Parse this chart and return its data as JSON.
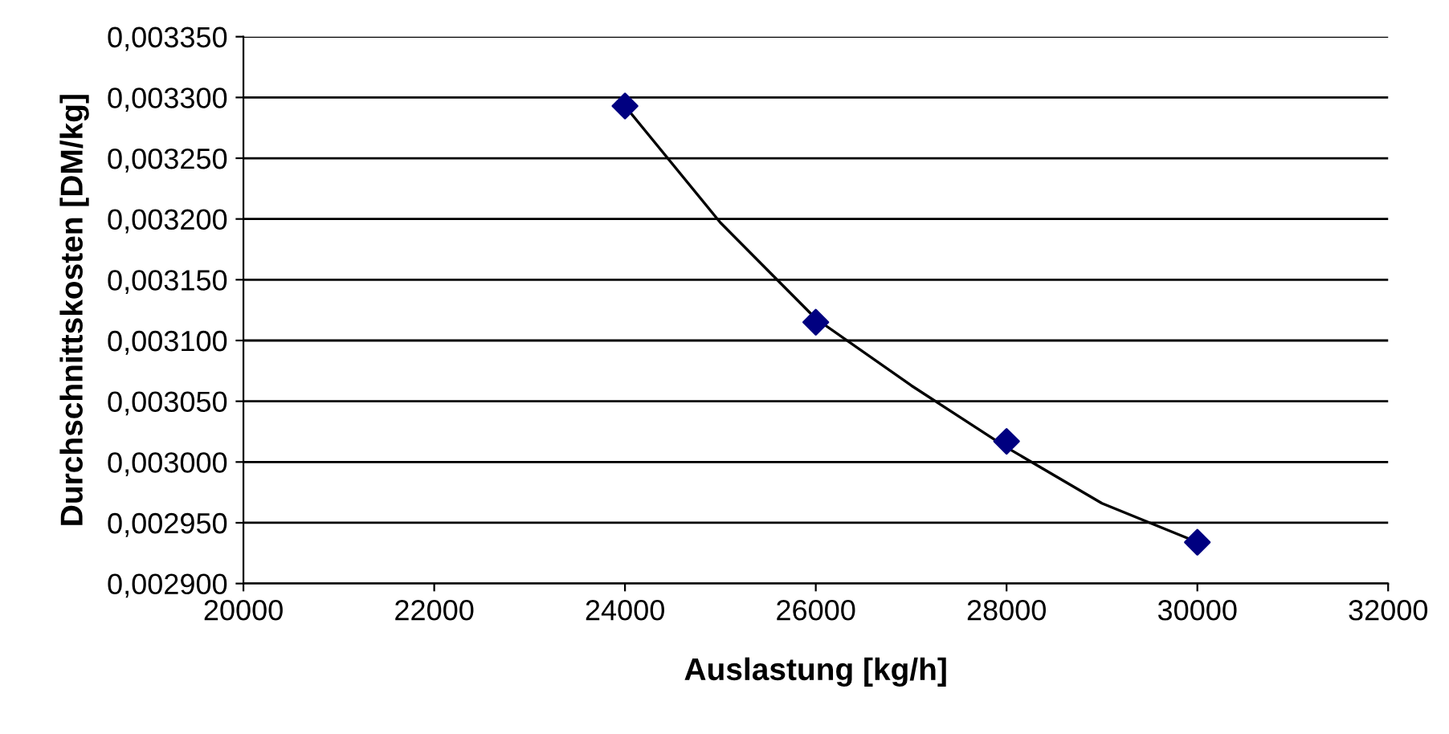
{
  "chart_data": {
    "type": "scatter",
    "xlabel": "Auslastung [kg/h]",
    "ylabel": "Durchschnittskosten [DM/kg]",
    "xlim": [
      20000,
      32000
    ],
    "xticks": [
      20000,
      22000,
      24000,
      26000,
      28000,
      30000,
      32000
    ],
    "ylim": [
      0.0029,
      0.00335
    ],
    "yticks": [
      {
        "value": 0.0029,
        "label": "0,002900"
      },
      {
        "value": 0.00295,
        "label": "0,002950"
      },
      {
        "value": 0.003,
        "label": "0,003000"
      },
      {
        "value": 0.00305,
        "label": "0,003050"
      },
      {
        "value": 0.0031,
        "label": "0,003100"
      },
      {
        "value": 0.00315,
        "label": "0,003150"
      },
      {
        "value": 0.0032,
        "label": "0,003200"
      },
      {
        "value": 0.00325,
        "label": "0,003250"
      },
      {
        "value": 0.0033,
        "label": "0,003300"
      },
      {
        "value": 0.00335,
        "label": "0,003350"
      }
    ],
    "grid": "y",
    "series": [
      {
        "type": "line",
        "color": "#000000",
        "marker": "none",
        "x": [
          24000,
          25000,
          26000,
          27000,
          28000,
          29000,
          30000
        ],
        "values": [
          0.003293,
          0.003197,
          0.003118,
          0.003063,
          0.003012,
          0.002966,
          0.002934
        ]
      },
      {
        "color": "#000080",
        "marker": "diamond",
        "x": [
          24000,
          26000,
          28000,
          30000
        ],
        "values": [
          0.003293,
          0.003115,
          0.003017,
          0.002934
        ]
      }
    ]
  }
}
